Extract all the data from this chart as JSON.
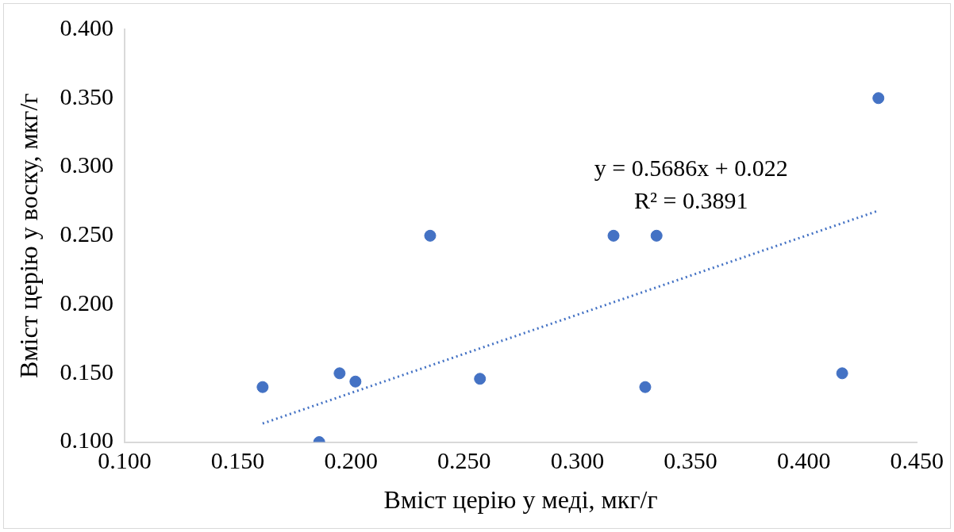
{
  "chart_data": {
    "type": "scatter",
    "xlabel": "Вміст церію у меді, мкг/г",
    "ylabel": "Вміст церію у воску, мкг/г",
    "annotations": [
      "y = 0.5686x + 0.022",
      "R² = 0.3891"
    ],
    "xlim": [
      0.1,
      0.45
    ],
    "xticks": [
      {
        "value": 0.1,
        "label": "0.100"
      },
      {
        "value": 0.15,
        "label": "0.150"
      },
      {
        "value": 0.2,
        "label": "0.200"
      },
      {
        "value": 0.25,
        "label": "0.250"
      },
      {
        "value": 0.3,
        "label": "0.300"
      },
      {
        "value": 0.35,
        "label": "0.350"
      },
      {
        "value": 0.4,
        "label": "0.400"
      },
      {
        "value": 0.45,
        "label": "0.450"
      }
    ],
    "ylim": [
      0.1,
      0.4
    ],
    "yticks": [
      {
        "value": 0.1,
        "label": "0.100"
      },
      {
        "value": 0.15,
        "label": "0.150"
      },
      {
        "value": 0.2,
        "label": "0.200"
      },
      {
        "value": 0.25,
        "label": "0.250"
      },
      {
        "value": 0.3,
        "label": "0.300"
      },
      {
        "value": 0.35,
        "label": "0.350"
      },
      {
        "value": 0.4,
        "label": "0.400"
      }
    ],
    "grid": false,
    "legend": false,
    "marker": "circle",
    "series": [
      {
        "type": "scatter",
        "color": "#4472c4",
        "x": [
          0.161,
          0.186,
          0.195,
          0.202,
          0.235,
          0.257,
          0.316,
          0.33,
          0.335,
          0.417,
          0.433
        ],
        "values": [
          0.14,
          0.1,
          0.15,
          0.144,
          0.25,
          0.146,
          0.25,
          0.14,
          0.25,
          0.15,
          0.35
        ]
      },
      {
        "type": "line",
        "color": "#4472c4",
        "line_style": "dotted",
        "marker": "none",
        "x": [
          0.161,
          0.433
        ],
        "values": [
          0.1135,
          0.2682
        ]
      }
    ]
  }
}
